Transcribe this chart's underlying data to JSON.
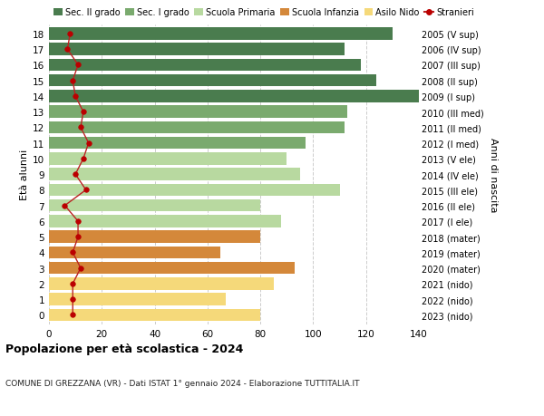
{
  "ages": [
    18,
    17,
    16,
    15,
    14,
    13,
    12,
    11,
    10,
    9,
    8,
    7,
    6,
    5,
    4,
    3,
    2,
    1,
    0
  ],
  "bar_values": [
    130,
    112,
    118,
    124,
    140,
    113,
    112,
    97,
    90,
    95,
    110,
    80,
    88,
    80,
    65,
    93,
    85,
    67,
    80
  ],
  "bar_colors": [
    "#4a7c4e",
    "#4a7c4e",
    "#4a7c4e",
    "#4a7c4e",
    "#4a7c4e",
    "#7aaa6e",
    "#7aaa6e",
    "#7aaa6e",
    "#b8d9a0",
    "#b8d9a0",
    "#b8d9a0",
    "#b8d9a0",
    "#b8d9a0",
    "#d4883a",
    "#d4883a",
    "#d4883a",
    "#f5d97a",
    "#f5d97a",
    "#f5d97a"
  ],
  "stranieri_values": [
    8,
    7,
    11,
    9,
    10,
    13,
    12,
    15,
    13,
    10,
    14,
    6,
    11,
    11,
    9,
    12,
    9,
    9,
    9
  ],
  "right_labels": [
    "2005 (V sup)",
    "2006 (IV sup)",
    "2007 (III sup)",
    "2008 (II sup)",
    "2009 (I sup)",
    "2010 (III med)",
    "2011 (II med)",
    "2012 (I med)",
    "2013 (V ele)",
    "2014 (IV ele)",
    "2015 (III ele)",
    "2016 (II ele)",
    "2017 (I ele)",
    "2018 (mater)",
    "2019 (mater)",
    "2020 (mater)",
    "2021 (nido)",
    "2022 (nido)",
    "2023 (nido)"
  ],
  "legend_labels": [
    "Sec. II grado",
    "Sec. I grado",
    "Scuola Primaria",
    "Scuola Infanzia",
    "Asilo Nido",
    "Stranieri"
  ],
  "legend_colors": [
    "#4a7c4e",
    "#7aaa6e",
    "#b8d9a0",
    "#d4883a",
    "#f5d97a",
    "#cc0000"
  ],
  "title": "Popolazione per età scolastica - 2024",
  "subtitle": "COMUNE DI GREZZANA (VR) - Dati ISTAT 1° gennaio 2024 - Elaborazione TUTTITALIA.IT",
  "ylabel_left": "Età alunni",
  "ylabel_right": "Anni di nascita",
  "xlim": [
    0,
    140
  ],
  "xticks": [
    0,
    20,
    40,
    60,
    80,
    100,
    120,
    140
  ],
  "background_color": "#ffffff",
  "bar_height": 0.78,
  "stranieri_color": "#bb0000",
  "stranieri_line_color": "#bb2222",
  "ylim": [
    -0.6,
    18.6
  ]
}
